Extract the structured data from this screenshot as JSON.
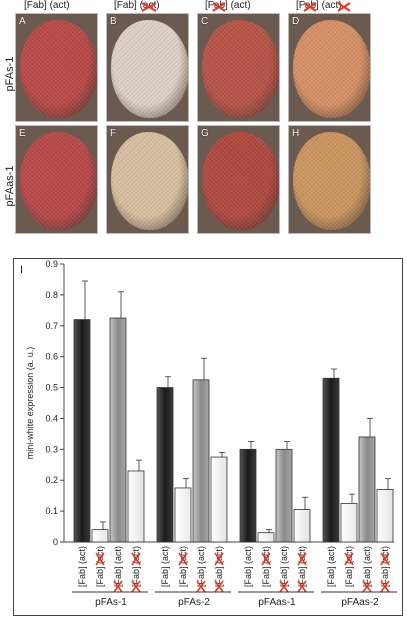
{
  "columns": [
    {
      "prefix": "[Fab]",
      "suffix": "(act)",
      "fab_crossed": false,
      "act_crossed": false
    },
    {
      "prefix": "[Fab]",
      "suffix": "(act)",
      "fab_crossed": false,
      "act_crossed": true
    },
    {
      "prefix": "[Fab]",
      "suffix": "(act)",
      "fab_crossed": true,
      "act_crossed": false
    },
    {
      "prefix": "[Fab]",
      "suffix": "(act)",
      "fab_crossed": true,
      "act_crossed": true
    }
  ],
  "rows": [
    {
      "label": "pFAs-1",
      "panels": [
        "A",
        "B",
        "C",
        "D"
      ],
      "colors": [
        "#b94a48",
        "#ded2c6",
        "#b85448",
        "#d69066"
      ]
    },
    {
      "label": "pFAas-1",
      "panels": [
        "E",
        "F",
        "G",
        "H"
      ],
      "colors": [
        "#b8494a",
        "#d8bfa0",
        "#b04a40",
        "#cc9560"
      ]
    }
  ],
  "panel_I_letter": "I",
  "cross_color": "#e8361e",
  "chart_data": {
    "type": "bar",
    "ylabel": "mini-white expression (a. u.)",
    "ylim": [
      0,
      0.9
    ],
    "yticks": [
      "0",
      "0.1",
      "0.2",
      "0.3",
      "0.4",
      "0.5",
      "0.6",
      "0.7",
      "0.8",
      "0.9"
    ],
    "groups": [
      {
        "label": "pFAs-1",
        "values": [
          0.72,
          0.04,
          0.725,
          0.23
        ],
        "errors": [
          0.125,
          0.025,
          0.085,
          0.035
        ]
      },
      {
        "label": "pFAs-2",
        "values": [
          0.5,
          0.175,
          0.525,
          0.275
        ],
        "errors": [
          0.035,
          0.03,
          0.07,
          0.015
        ]
      },
      {
        "label": "pFAas-1",
        "values": [
          0.3,
          0.03,
          0.3,
          0.105
        ],
        "errors": [
          0.025,
          0.01,
          0.025,
          0.04
        ]
      },
      {
        "label": "pFAas-2",
        "values": [
          0.53,
          0.125,
          0.34,
          0.17
        ],
        "errors": [
          0.03,
          0.03,
          0.06,
          0.035
        ]
      }
    ],
    "bar_colors": [
      "#2b2b2b",
      "#ffffff",
      "#9e9e9e",
      "#f2f2f2"
    ],
    "bar_labels": [
      {
        "prefix": "[Fab]",
        "suffix": "(act)",
        "fab_crossed": false,
        "act_crossed": false
      },
      {
        "prefix": "[Fab]",
        "suffix": "(act)",
        "fab_crossed": false,
        "act_crossed": true
      },
      {
        "prefix": "[Fab]",
        "suffix": "(act)",
        "fab_crossed": true,
        "act_crossed": false
      },
      {
        "prefix": "[Fab]",
        "suffix": "(act)",
        "fab_crossed": true,
        "act_crossed": true
      }
    ]
  }
}
